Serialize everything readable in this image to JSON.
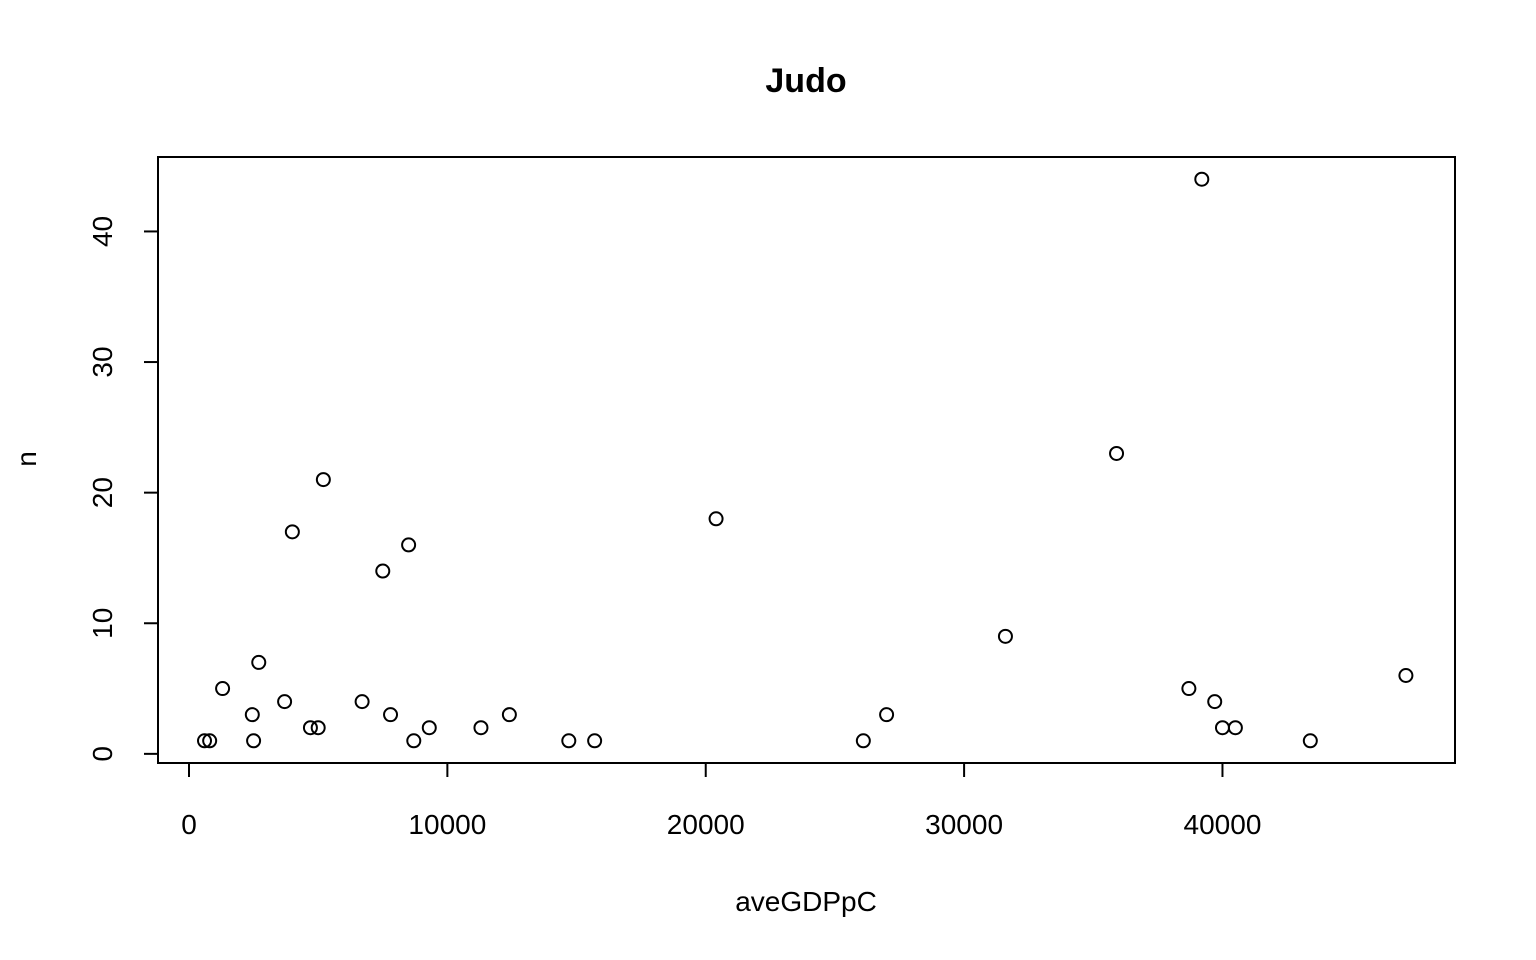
{
  "chart_data": {
    "type": "scatter",
    "title": "Judo",
    "xlabel": "aveGDPpC",
    "ylabel": "n",
    "xlim": [
      -1200,
      49000
    ],
    "ylim": [
      -0.7,
      45.7
    ],
    "xticks": [
      0,
      10000,
      20000,
      30000,
      40000
    ],
    "yticks": [
      0,
      10,
      20,
      30,
      40
    ],
    "grid": false,
    "legend": "none",
    "points": [
      {
        "x": 600,
        "y": 1
      },
      {
        "x": 800,
        "y": 1
      },
      {
        "x": 1300,
        "y": 5
      },
      {
        "x": 2450,
        "y": 3
      },
      {
        "x": 2500,
        "y": 1
      },
      {
        "x": 2700,
        "y": 7
      },
      {
        "x": 3700,
        "y": 4
      },
      {
        "x": 4000,
        "y": 17
      },
      {
        "x": 4700,
        "y": 2
      },
      {
        "x": 5000,
        "y": 2
      },
      {
        "x": 5200,
        "y": 21
      },
      {
        "x": 6700,
        "y": 4
      },
      {
        "x": 7500,
        "y": 14
      },
      {
        "x": 7800,
        "y": 3
      },
      {
        "x": 8500,
        "y": 16
      },
      {
        "x": 8700,
        "y": 1
      },
      {
        "x": 9300,
        "y": 2
      },
      {
        "x": 11300,
        "y": 2
      },
      {
        "x": 12400,
        "y": 3
      },
      {
        "x": 14700,
        "y": 1
      },
      {
        "x": 15700,
        "y": 1
      },
      {
        "x": 20400,
        "y": 18
      },
      {
        "x": 26100,
        "y": 1
      },
      {
        "x": 27000,
        "y": 3
      },
      {
        "x": 31600,
        "y": 9
      },
      {
        "x": 35900,
        "y": 23
      },
      {
        "x": 38700,
        "y": 5
      },
      {
        "x": 39200,
        "y": 44
      },
      {
        "x": 39700,
        "y": 4
      },
      {
        "x": 40000,
        "y": 2
      },
      {
        "x": 40500,
        "y": 2
      },
      {
        "x": 43400,
        "y": 1
      },
      {
        "x": 47100,
        "y": 6
      }
    ]
  }
}
